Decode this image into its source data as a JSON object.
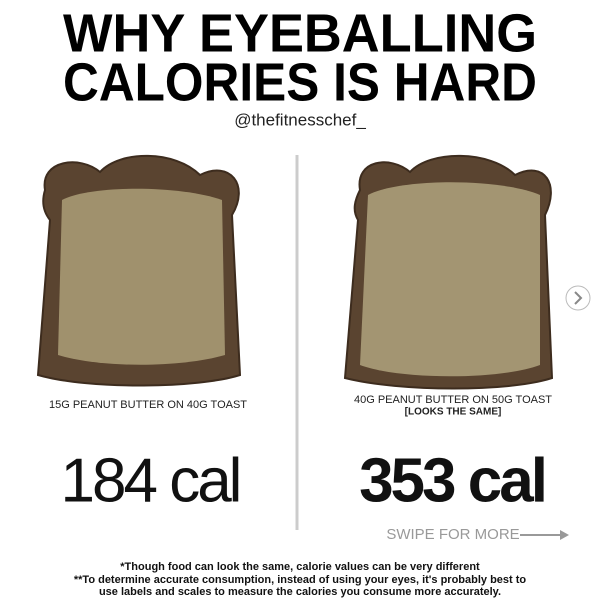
{
  "header": {
    "title_lines": [
      "WHY EYEBALLING",
      "CALORIES IS HARD"
    ],
    "handle": "@thefitnesschef_"
  },
  "left": {
    "caption": "15G PEANUT BUTTER ON 40G TOAST",
    "calories": "184 cal"
  },
  "right": {
    "caption": "40G PEANUT BUTTER ON 50G TOAST",
    "caption_note": "[LOOKS THE SAME]",
    "calories": "353 cal"
  },
  "swipe": "SWIPE FOR MORE",
  "footnotes": [
    "*Though food can look the same, calorie values can be very different",
    "**To determine accurate consumption, instead of using your eyes, it's probably best to",
    "use labels and scales to measure the calories you consume more accurately."
  ]
}
